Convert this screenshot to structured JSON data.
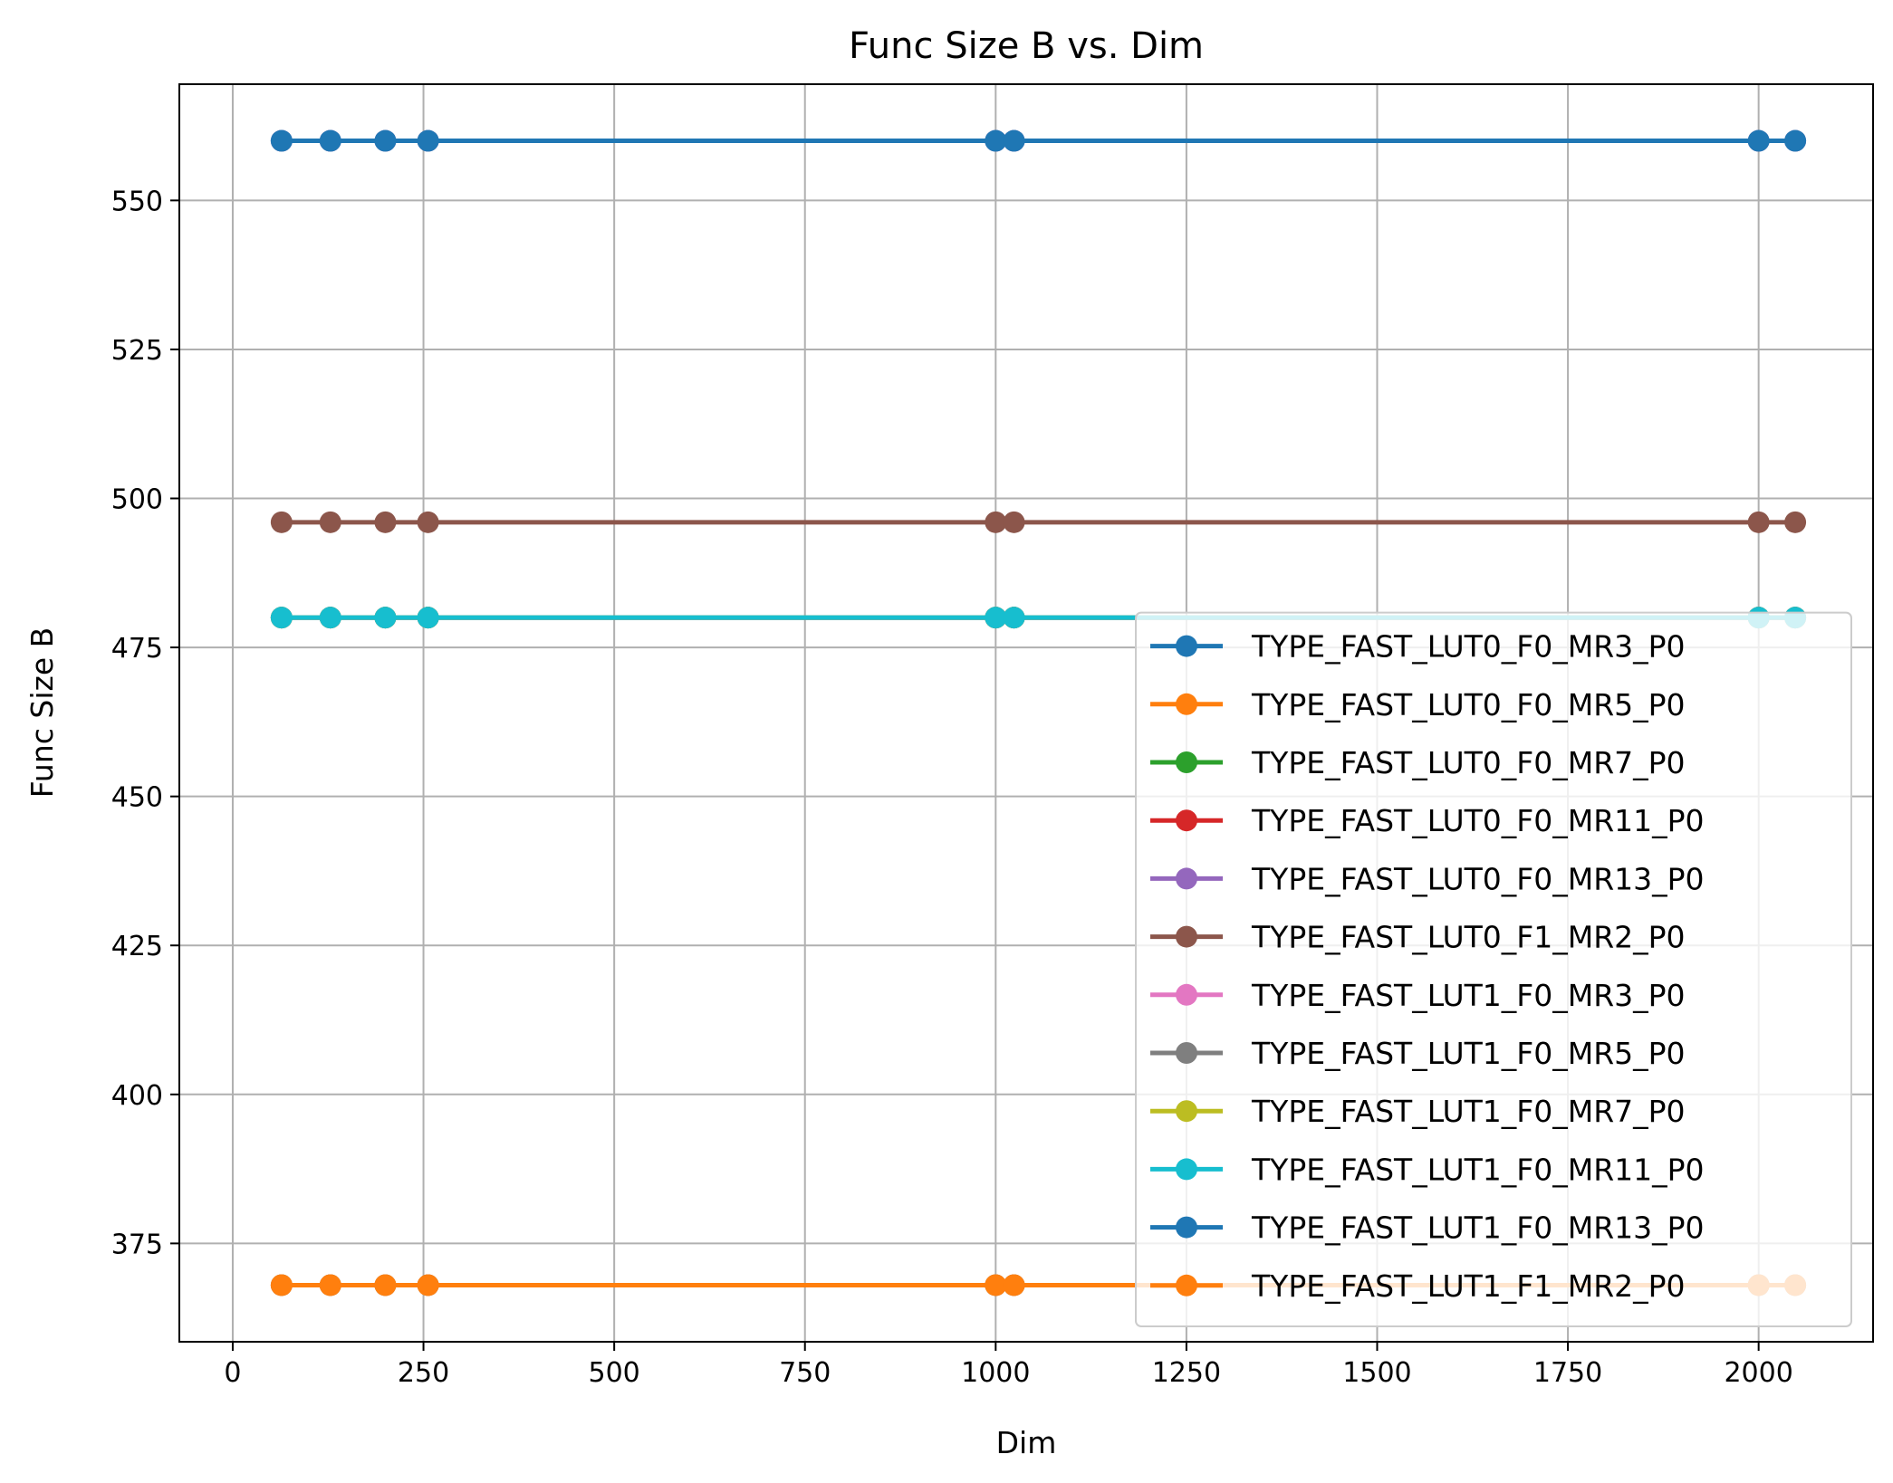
{
  "chart_data": {
    "type": "line",
    "title": "Func Size B vs. Dim",
    "xlabel": "Dim",
    "ylabel": "Func Size B",
    "xlim": [
      -70,
      2150
    ],
    "ylim": [
      358.5,
      569.5
    ],
    "xticks": [
      0,
      250,
      500,
      750,
      1000,
      1250,
      1500,
      1750,
      2000
    ],
    "yticks": [
      375,
      400,
      425,
      450,
      475,
      500,
      525,
      550
    ],
    "grid": true,
    "legend_position": "lower-right",
    "x": [
      64,
      128,
      200,
      256,
      1000,
      1024,
      2000,
      2048
    ],
    "series": [
      {
        "name": "TYPE_FAST_LUT0_F0_MR3_P0",
        "color": "#1f77b4",
        "values": [
          560,
          560,
          560,
          560,
          560,
          560,
          560,
          560
        ]
      },
      {
        "name": "TYPE_FAST_LUT0_F0_MR5_P0",
        "color": "#ff7f0e",
        "values": [
          368,
          368,
          368,
          368,
          368,
          368,
          368,
          368
        ]
      },
      {
        "name": "TYPE_FAST_LUT0_F0_MR7_P0",
        "color": "#2ca02c",
        "values": [
          480,
          480,
          480,
          480,
          480,
          480,
          480,
          480
        ]
      },
      {
        "name": "TYPE_FAST_LUT0_F0_MR11_P0",
        "color": "#d62728",
        "values": [
          480,
          480,
          480,
          480,
          480,
          480,
          480,
          480
        ]
      },
      {
        "name": "TYPE_FAST_LUT0_F0_MR13_P0",
        "color": "#9467bd",
        "values": [
          480,
          480,
          480,
          480,
          480,
          480,
          480,
          480
        ]
      },
      {
        "name": "TYPE_FAST_LUT0_F1_MR2_P0",
        "color": "#8c564b",
        "values": [
          496,
          496,
          496,
          496,
          496,
          496,
          496,
          496
        ]
      },
      {
        "name": "TYPE_FAST_LUT1_F0_MR3_P0",
        "color": "#e377c2",
        "values": [
          560,
          560,
          560,
          560,
          560,
          560,
          560,
          560
        ]
      },
      {
        "name": "TYPE_FAST_LUT1_F0_MR5_P0",
        "color": "#7f7f7f",
        "values": [
          368,
          368,
          368,
          368,
          368,
          368,
          368,
          368
        ]
      },
      {
        "name": "TYPE_FAST_LUT1_F0_MR7_P0",
        "color": "#bcbd22",
        "values": [
          480,
          480,
          480,
          480,
          480,
          480,
          480,
          480
        ]
      },
      {
        "name": "TYPE_FAST_LUT1_F0_MR11_P0",
        "color": "#17becf",
        "values": [
          480,
          480,
          480,
          480,
          480,
          480,
          480,
          480
        ]
      },
      {
        "name": "TYPE_FAST_LUT1_F0_MR13_P0",
        "color": "#1f77b4",
        "values": [
          560,
          560,
          560,
          560,
          560,
          560,
          560,
          560
        ]
      },
      {
        "name": "TYPE_FAST_LUT1_F1_MR2_P0",
        "color": "#ff7f0e",
        "values": [
          368,
          368,
          368,
          368,
          368,
          368,
          368,
          368
        ]
      }
    ]
  }
}
